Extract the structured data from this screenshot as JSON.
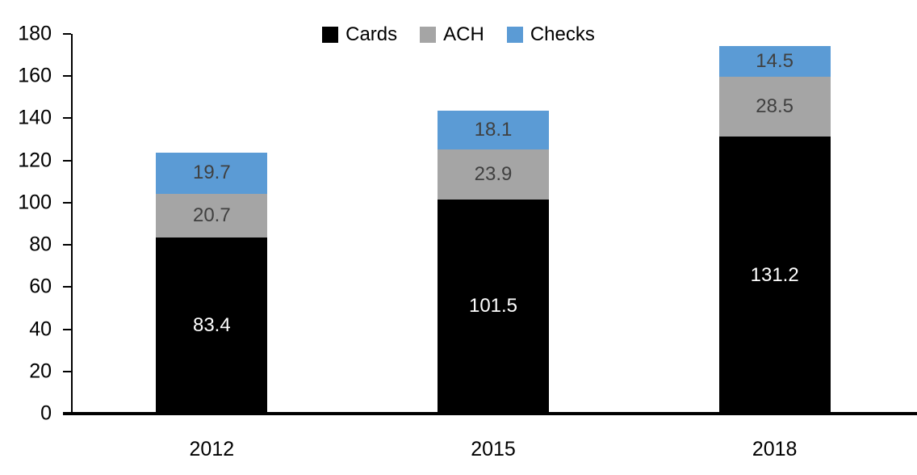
{
  "chart_data": {
    "type": "bar",
    "stacked": true,
    "title": "",
    "categories": [
      "2012",
      "2015",
      "2018"
    ],
    "series": [
      {
        "name": "Cards",
        "color": "#000000",
        "label_color": "#FFFFFF",
        "values": [
          83.4,
          101.5,
          131.2
        ]
      },
      {
        "name": "ACH",
        "color": "#A5A5A5",
        "label_color": "#404040",
        "values": [
          20.7,
          23.9,
          28.5
        ]
      },
      {
        "name": "Checks",
        "color": "#5B9BD5",
        "label_color": "#404040",
        "values": [
          19.7,
          18.1,
          14.5
        ]
      }
    ],
    "ylim": [
      0,
      180
    ],
    "yticks": [
      0,
      20,
      40,
      60,
      80,
      100,
      120,
      140,
      160,
      180
    ],
    "grid": false,
    "legend_position": "top",
    "axis_color": "#000000",
    "background_color": "#FFFFFF"
  }
}
